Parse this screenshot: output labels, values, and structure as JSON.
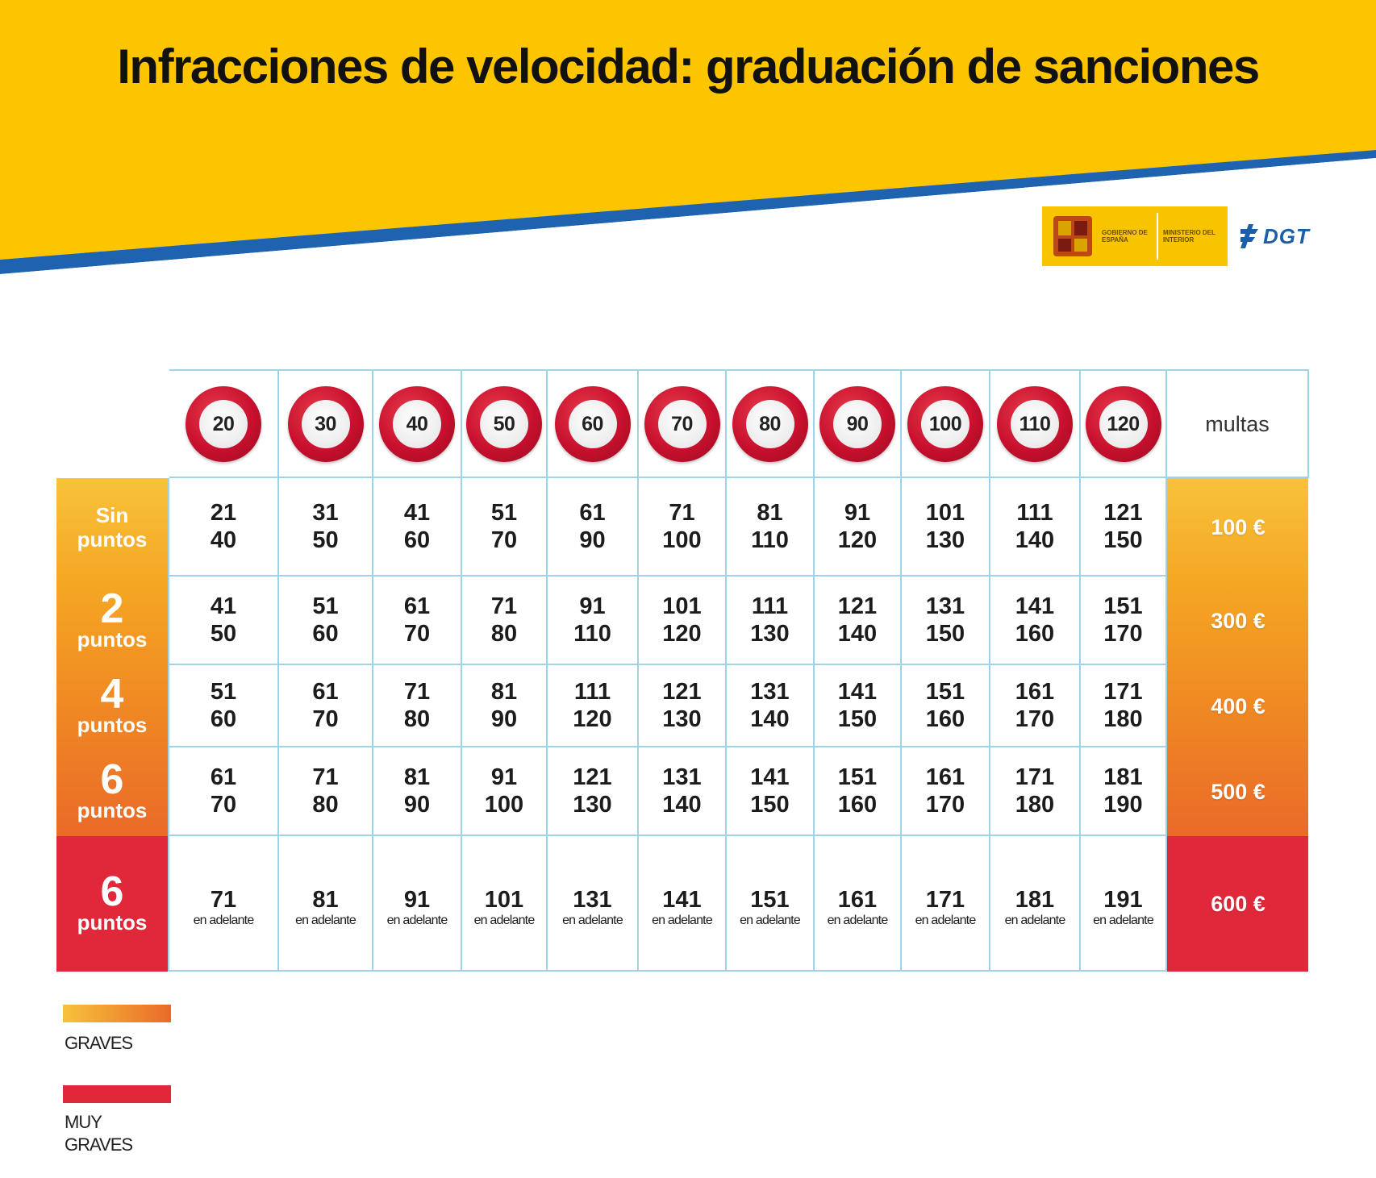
{
  "title": "Infracciones de velocidad: graduación de sanciones",
  "colors": {
    "banner_yellow": "#fcc500",
    "banner_blue": "#1f63b0",
    "grid_line": "#9fd3e8",
    "graves_gradient_start": "#f8c23a",
    "graves_gradient_end": "#ea6a28",
    "muy_graves": "#e0283a",
    "sign_red": "#c8102e"
  },
  "logos": {
    "gov_line1": "GOBIERNO DE ESPAÑA",
    "gov_line2": "MINISTERIO DEL INTERIOR",
    "dgt": "DGT"
  },
  "table": {
    "speed_limits": [
      "20",
      "30",
      "40",
      "50",
      "60",
      "70",
      "80",
      "90",
      "100",
      "110",
      "120"
    ],
    "fines_header": "multas",
    "rows": [
      {
        "label_top": "Sin",
        "label_bottom": "puntos",
        "fine": "100 €",
        "cells": [
          [
            "21",
            "40"
          ],
          [
            "31",
            "50"
          ],
          [
            "41",
            "60"
          ],
          [
            "51",
            "70"
          ],
          [
            "61",
            "90"
          ],
          [
            "71",
            "100"
          ],
          [
            "81",
            "110"
          ],
          [
            "91",
            "120"
          ],
          [
            "101",
            "130"
          ],
          [
            "111",
            "140"
          ],
          [
            "121",
            "150"
          ]
        ]
      },
      {
        "label_top": "2",
        "label_bottom": "puntos",
        "fine": "300 €",
        "cells": [
          [
            "41",
            "50"
          ],
          [
            "51",
            "60"
          ],
          [
            "61",
            "70"
          ],
          [
            "71",
            "80"
          ],
          [
            "91",
            "110"
          ],
          [
            "101",
            "120"
          ],
          [
            "111",
            "130"
          ],
          [
            "121",
            "140"
          ],
          [
            "131",
            "150"
          ],
          [
            "141",
            "160"
          ],
          [
            "151",
            "170"
          ]
        ]
      },
      {
        "label_top": "4",
        "label_bottom": "puntos",
        "fine": "400 €",
        "cells": [
          [
            "51",
            "60"
          ],
          [
            "61",
            "70"
          ],
          [
            "71",
            "80"
          ],
          [
            "81",
            "90"
          ],
          [
            "111",
            "120"
          ],
          [
            "121",
            "130"
          ],
          [
            "131",
            "140"
          ],
          [
            "141",
            "150"
          ],
          [
            "151",
            "160"
          ],
          [
            "161",
            "170"
          ],
          [
            "171",
            "180"
          ]
        ]
      },
      {
        "label_top": "6",
        "label_bottom": "puntos",
        "fine": "500 €",
        "cells": [
          [
            "61",
            "70"
          ],
          [
            "71",
            "80"
          ],
          [
            "81",
            "90"
          ],
          [
            "91",
            "100"
          ],
          [
            "121",
            "130"
          ],
          [
            "131",
            "140"
          ],
          [
            "141",
            "150"
          ],
          [
            "151",
            "160"
          ],
          [
            "161",
            "170"
          ],
          [
            "171",
            "180"
          ],
          [
            "181",
            "190"
          ]
        ]
      },
      {
        "label_top": "6",
        "label_bottom": "puntos",
        "fine": "600 €",
        "cells": [
          [
            "71",
            "en adelante"
          ],
          [
            "81",
            "en adelante"
          ],
          [
            "91",
            "en adelante"
          ],
          [
            "101",
            "en adelante"
          ],
          [
            "131",
            "en adelante"
          ],
          [
            "141",
            "en adelante"
          ],
          [
            "151",
            "en adelante"
          ],
          [
            "161",
            "en adelante"
          ],
          [
            "171",
            "en adelante"
          ],
          [
            "181",
            "en adelante"
          ],
          [
            "191",
            "en adelante"
          ]
        ]
      }
    ]
  },
  "legend": {
    "graves": "GRAVES",
    "muy_graves_line1": "MUY",
    "muy_graves_line2": "GRAVES"
  }
}
